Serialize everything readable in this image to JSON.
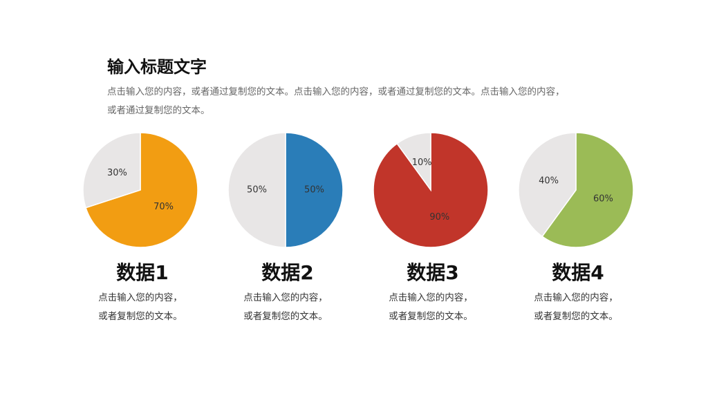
{
  "header": {
    "title": "输入标题文字",
    "text": [
      "点击输入您的内容，或者通过复制您的文本。点击输入您的内容，或者通过复制您的文本。点击输入您的内容，",
      "或者通过复制您的文本。"
    ]
  },
  "chart_data": [
    {
      "type": "pie",
      "title": "数据1",
      "description": [
        "点击输入您的内容，",
        "或者复制您的文本。"
      ],
      "values": [
        70,
        30
      ],
      "value_labels": [
        "70%",
        "30%"
      ],
      "colors": [
        "#f29d12",
        "#e8e6e6"
      ]
    },
    {
      "type": "pie",
      "title": "数据2",
      "description": [
        "点击输入您的内容，",
        "或者复制您的文本。"
      ],
      "values": [
        50,
        50
      ],
      "value_labels": [
        "50%",
        "50%"
      ],
      "colors": [
        "#2a7db8",
        "#e8e6e6"
      ]
    },
    {
      "type": "pie",
      "title": "数据3",
      "description": [
        "点击输入您的内容，",
        "或者复制您的文本。"
      ],
      "values": [
        90,
        10
      ],
      "value_labels": [
        "90%",
        "10%"
      ],
      "colors": [
        "#c1352a",
        "#e8e6e6"
      ]
    },
    {
      "type": "pie",
      "title": "数据4",
      "description": [
        "点击输入您的内容，",
        "或者复制您的文本。"
      ],
      "values": [
        60,
        40
      ],
      "value_labels": [
        "60%",
        "40%"
      ],
      "colors": [
        "#9bbb56",
        "#e8e6e6"
      ]
    }
  ]
}
